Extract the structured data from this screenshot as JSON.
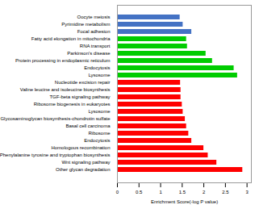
{
  "chart_data": {
    "type": "bar",
    "orientation": "horizontal",
    "categories": [
      "Other glycan degradation",
      "Wnt signaling pathway",
      "Phenylalanine tyrosine and tryptophan biosynthesis",
      "Homologous recombination",
      "Endocytosis",
      "Ribosome",
      "Basal cell carcinoma",
      "Glycosaminoglycan biosynthesis-chondrotin sulfate",
      "Lysosome",
      "Ribosome biogenesis in eukaryotes",
      "TGF-beta signaling pathway",
      "Valine leucine and isoleucine biosynthesis",
      "Nucleotide excision repair",
      "Lysosome",
      "Endocytosis",
      "Protein processing in endoplasmic reticulum",
      "Parkinson's disease",
      "RNA transport",
      "Fatty acid elongation in mitochondria",
      "Focal adhesion",
      "Pyrimidine metabolism",
      "Oocyte meiosis"
    ],
    "values": [
      2.9,
      2.3,
      2.1,
      2.0,
      1.72,
      1.65,
      1.6,
      1.57,
      1.52,
      1.5,
      1.47,
      1.47,
      1.46,
      2.78,
      2.7,
      2.2,
      2.05,
      1.62,
      1.6,
      1.72,
      1.52,
      1.45
    ],
    "colors": [
      "#ff0000",
      "#ff0000",
      "#ff0000",
      "#ff0000",
      "#ff0000",
      "#ff0000",
      "#ff0000",
      "#ff0000",
      "#ff0000",
      "#ff0000",
      "#ff0000",
      "#ff0000",
      "#ff0000",
      "#00cc00",
      "#00cc00",
      "#00cc00",
      "#00cc00",
      "#00cc00",
      "#00cc00",
      "#4472c4",
      "#4472c4",
      "#4472c4"
    ],
    "xlabel": "Enrichment Score(-log P value)",
    "xlim": [
      0,
      3.1
    ],
    "xticks": [
      0,
      0.5,
      1,
      1.5,
      2,
      2.5,
      3
    ]
  }
}
